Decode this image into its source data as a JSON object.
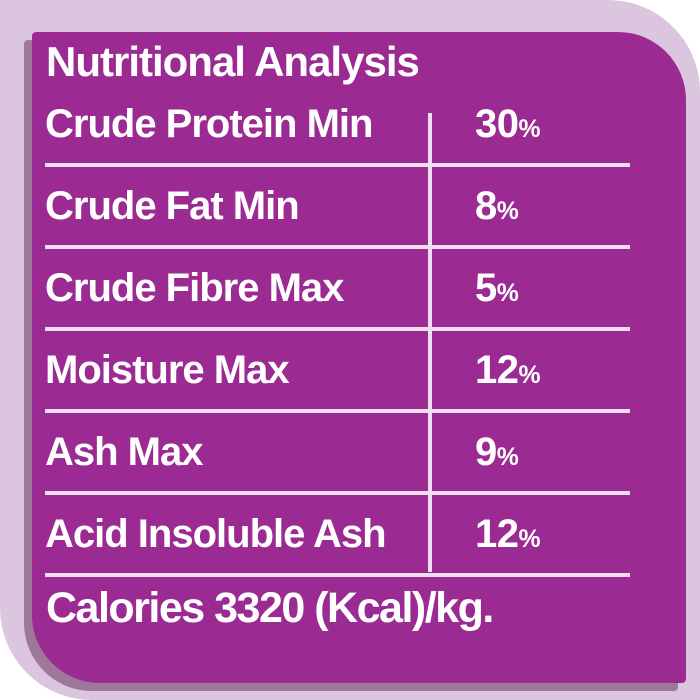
{
  "panel": {
    "title": "Nutritional Analysis",
    "rows": [
      {
        "label": "Crude Protein Min",
        "value": "30",
        "unit": "%"
      },
      {
        "label": "Crude Fat Min",
        "value": "8",
        "unit": "%"
      },
      {
        "label": "Crude Fibre Max",
        "value": "5",
        "unit": "%"
      },
      {
        "label": "Moisture Max",
        "value": "12",
        "unit": "%"
      },
      {
        "label": "Ash Max",
        "value": "9",
        "unit": "%"
      },
      {
        "label": "Acid Insoluble Ash",
        "value": "12",
        "unit": "%"
      }
    ],
    "footer": "Calories 3320 (Kcal)/kg."
  },
  "colors": {
    "panel_purple": "#9B2B93",
    "shadow_purple": "rgba(72,12,62,0.42)",
    "band_pink": "#DCC5DE",
    "line_pink": "#F0DEF0",
    "text_white": "#FFFFFF"
  }
}
